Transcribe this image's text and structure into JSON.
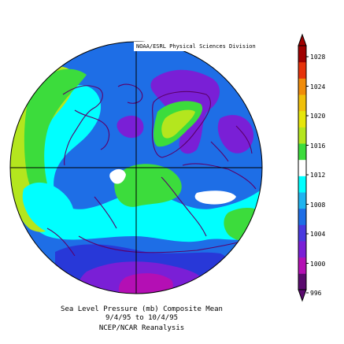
{
  "credit": "NOAA/ESRL Physical Sciences Division",
  "caption": {
    "line1": "Sea Level Pressure (mb) Composite Mean",
    "line2": "9/4/95 to 10/4/95",
    "line3": "NCEP/NCAR Reanalysis"
  },
  "colorbar": {
    "unit": "mb",
    "levels": [
      "996",
      "1000",
      "1004",
      "1008",
      "1012",
      "1016",
      "1020",
      "1024",
      "1028"
    ],
    "colors": [
      "#5a0a6e",
      "#b40fb4",
      "#7a1fd6",
      "#4a3adf",
      "#1e6ee6",
      "#1eb4f0",
      "#00ffff",
      "#ffffff",
      "#3cdc3c",
      "#b4e61e",
      "#e6e60a",
      "#f0c00a",
      "#f08c0a",
      "#e6320a",
      "#a00000"
    ]
  },
  "map": {
    "projection": "north-polar-stereographic",
    "field": "sea-level-pressure",
    "colors": {
      "purple_dark": "#6a12c8",
      "purple": "#7a1fd6",
      "magenta": "#b40fb4",
      "blue_dark": "#2838d8",
      "blue": "#1e6ee6",
      "cyan": "#00ffff",
      "green": "#3cdc3c",
      "yellowgreen": "#b4e61e",
      "coast": "#5a006a"
    }
  }
}
